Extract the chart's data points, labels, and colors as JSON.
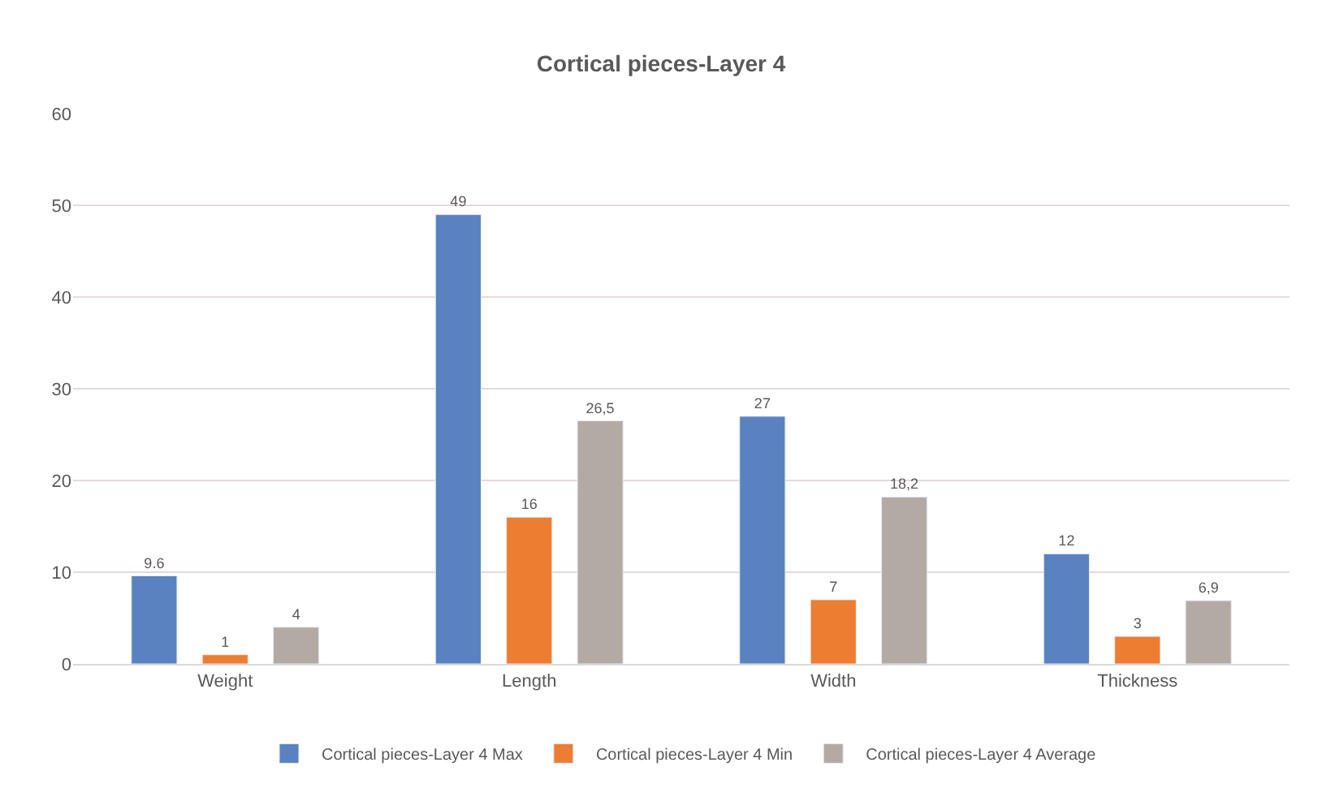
{
  "chart_data": {
    "type": "bar",
    "title": "Cortical pieces-Layer 4",
    "categories": [
      "Weight",
      "Length",
      "Width",
      "Thickness"
    ],
    "series": [
      {
        "name": "Cortical pieces-Layer 4 Max",
        "color": "#5b82c0",
        "values": [
          9.6,
          49,
          27,
          12
        ],
        "value_labels": [
          "9.6",
          "49",
          "27",
          "12"
        ]
      },
      {
        "name": "Cortical pieces-Layer 4 Min",
        "color": "#ed7d31",
        "values": [
          1,
          16,
          7,
          3
        ],
        "value_labels": [
          "1",
          "16",
          "7",
          "3"
        ]
      },
      {
        "name": "Cortical pieces-Layer 4 Average",
        "color": "#b4aaa4",
        "values": [
          4,
          26.5,
          18.2,
          6.9
        ],
        "value_labels": [
          "4",
          "26,5",
          "18,2",
          "6,9"
        ]
      }
    ],
    "ylim": [
      0,
      60
    ],
    "yticks": [
      0,
      10,
      20,
      30,
      40,
      50,
      60
    ],
    "grid": "y",
    "legend": "bottom"
  }
}
